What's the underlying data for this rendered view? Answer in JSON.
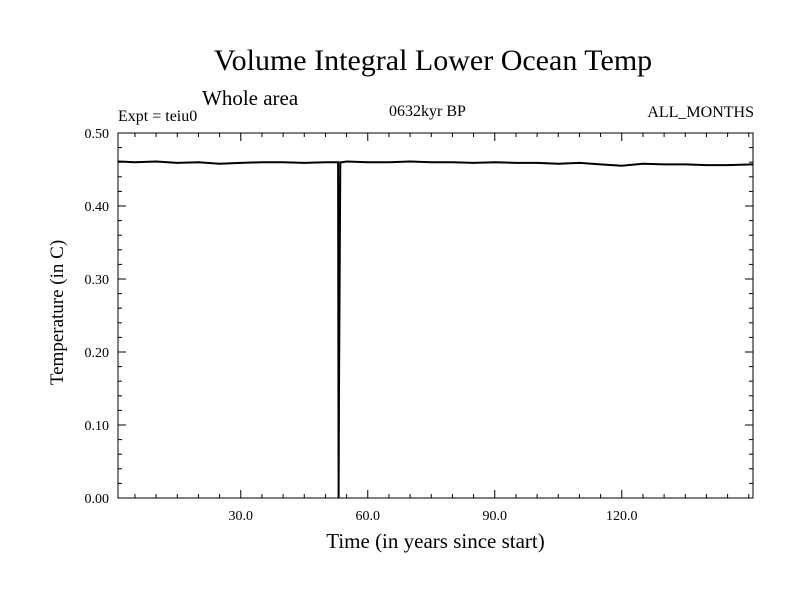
{
  "chart_data": {
    "type": "line",
    "title": "Volume Integral Lower Ocean Temp",
    "subtitle": "Whole area",
    "annotations": {
      "left": "Expt = teiu0",
      "center": "0632kyr BP",
      "right": "ALL_MONTHS"
    },
    "xlabel": "Time (in years since start)",
    "ylabel": "Temperature (in C)",
    "xlim": [
      1,
      151
    ],
    "ylim": [
      0.0,
      0.5
    ],
    "xticks": [
      30,
      60,
      90,
      120
    ],
    "xtick_labels": [
      "30.0",
      "60.0",
      "90.0",
      "120.0"
    ],
    "yticks": [
      0.0,
      0.1,
      0.2,
      0.3,
      0.4,
      0.5
    ],
    "ytick_labels": [
      "0.00",
      "0.10",
      "0.20",
      "0.30",
      "0.40",
      "0.50"
    ],
    "grid": false,
    "series": [
      {
        "name": "Volume Integral Lower Ocean Temp",
        "x": [
          1,
          5,
          10,
          15,
          20,
          25,
          30,
          35,
          40,
          45,
          50,
          53,
          53.1,
          53.2,
          53.5,
          54,
          55,
          60,
          65,
          70,
          75,
          80,
          85,
          90,
          95,
          100,
          105,
          110,
          115,
          120,
          125,
          130,
          135,
          140,
          145,
          151
        ],
        "y": [
          0.461,
          0.46,
          0.461,
          0.459,
          0.46,
          0.458,
          0.459,
          0.46,
          0.46,
          0.459,
          0.46,
          0.46,
          0.0,
          0.15,
          0.46,
          0.46,
          0.461,
          0.46,
          0.46,
          0.461,
          0.46,
          0.46,
          0.459,
          0.46,
          0.459,
          0.459,
          0.458,
          0.459,
          0.457,
          0.455,
          0.458,
          0.457,
          0.457,
          0.456,
          0.456,
          0.457
        ]
      }
    ]
  }
}
